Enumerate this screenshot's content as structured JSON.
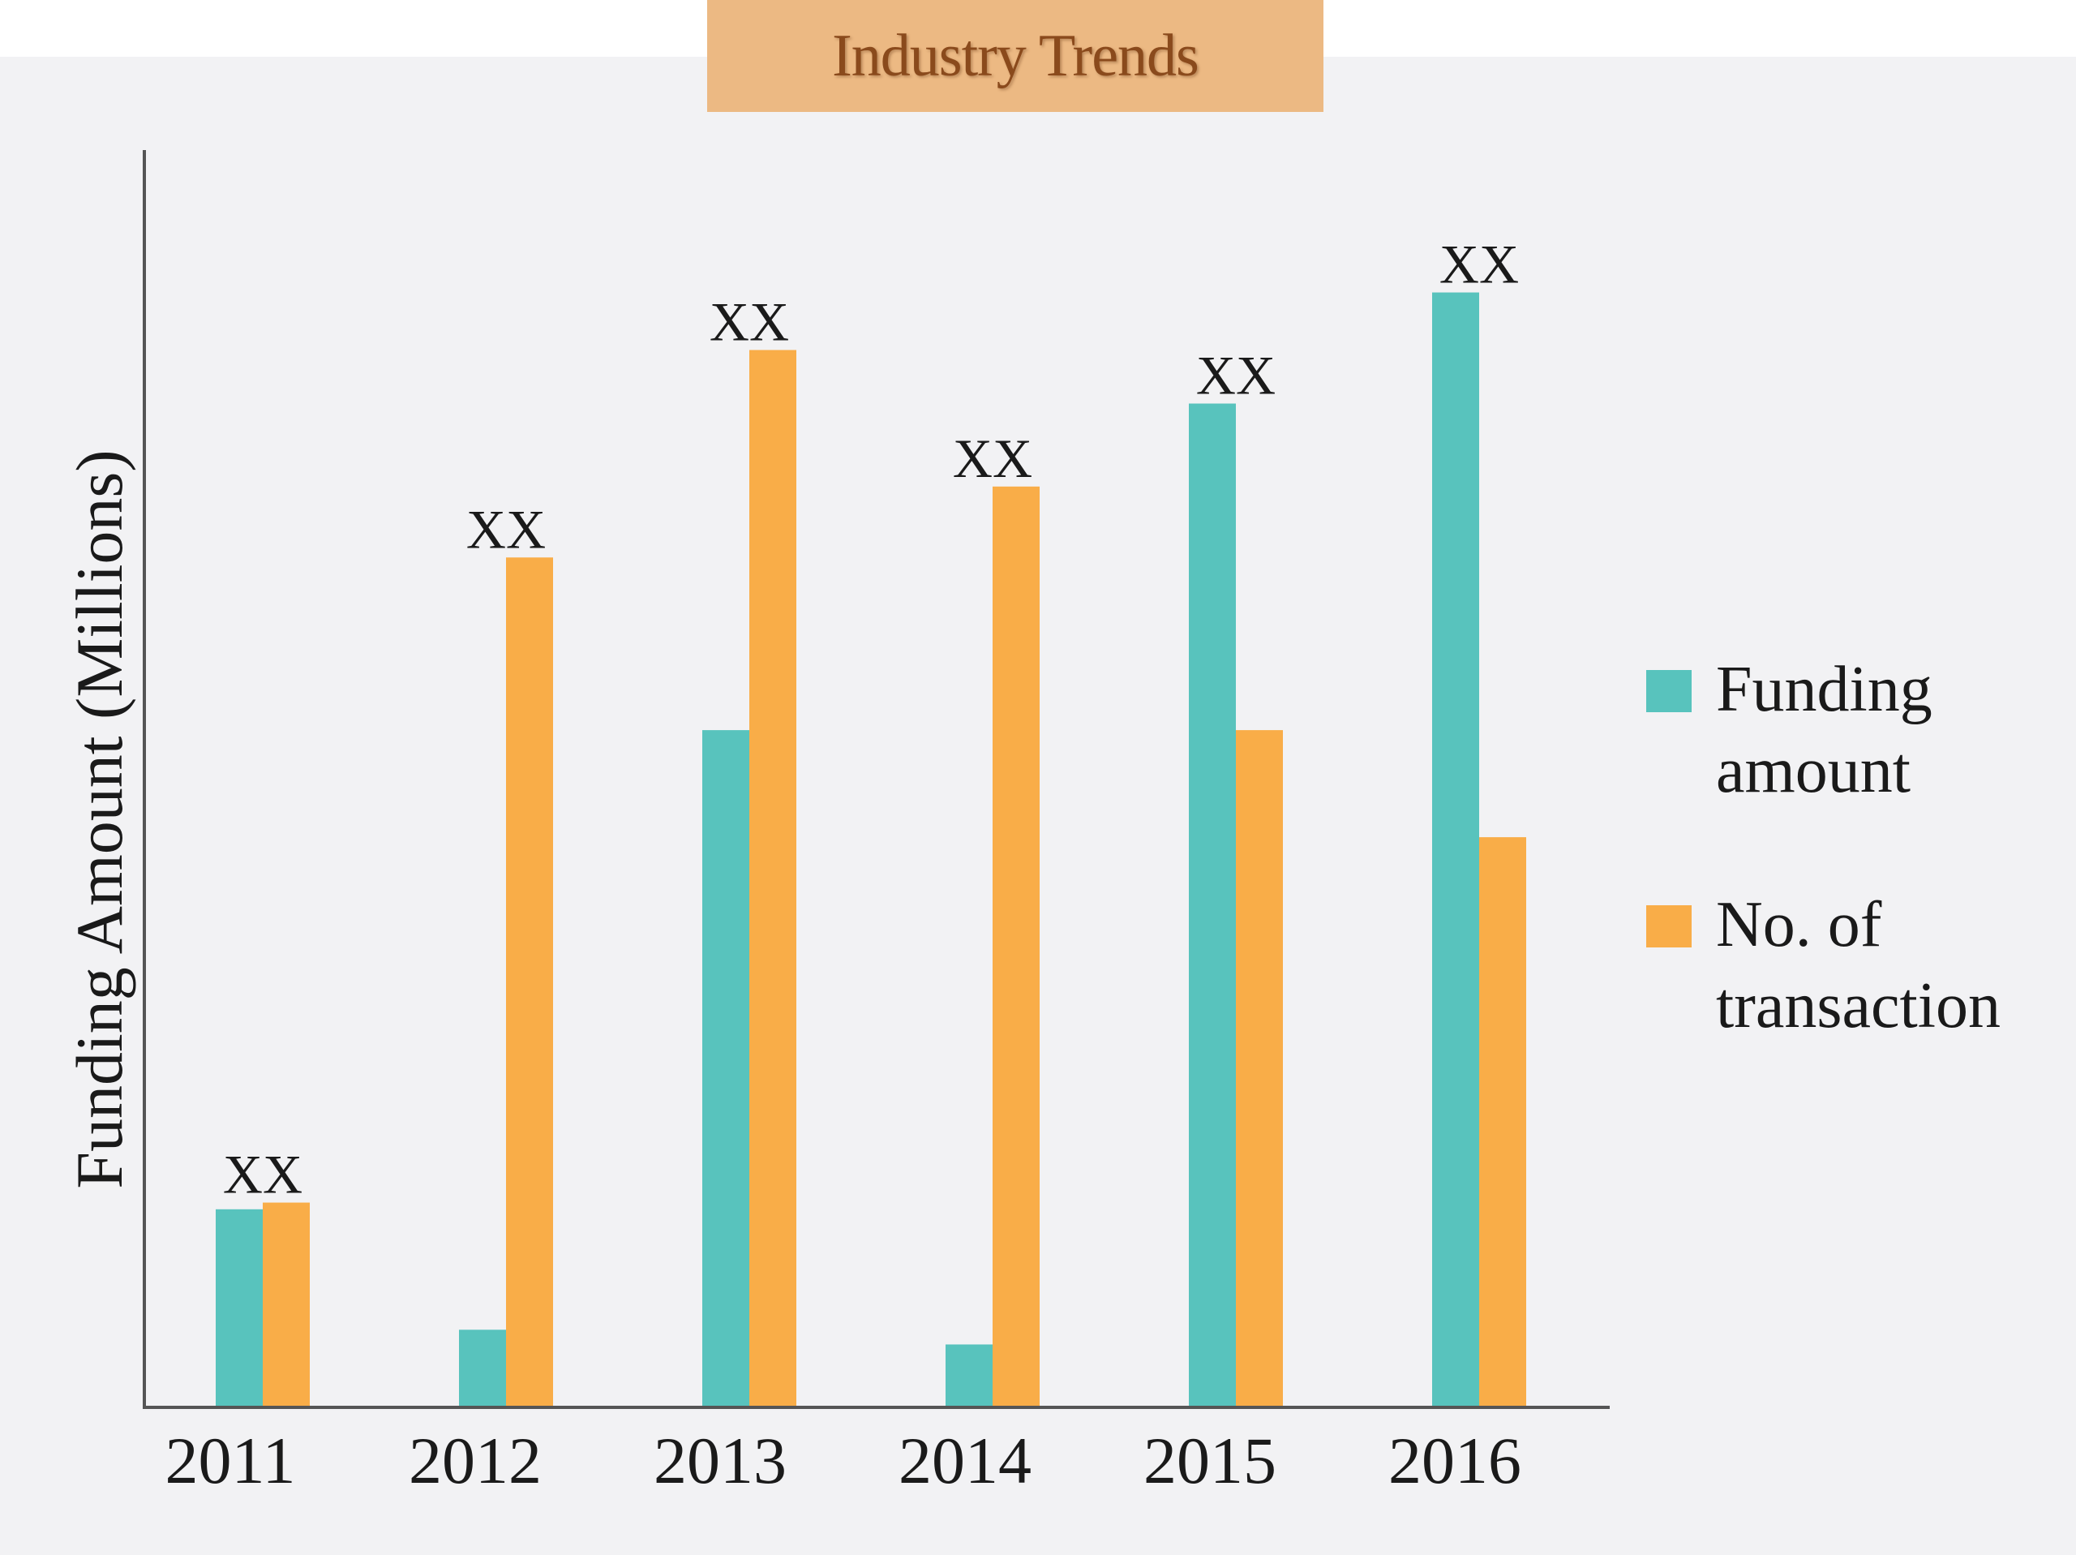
{
  "title": "Industry Trends",
  "chart_data": {
    "type": "bar",
    "title": "Industry Trends",
    "xlabel": "",
    "ylabel": "Funding Amount (Millions)",
    "categories": [
      "2011",
      "2012",
      "2013",
      "2014",
      "2015",
      "2016"
    ],
    "series": [
      {
        "name": "Funding amount",
        "color": "#58c3bd",
        "values": [
          14.8,
          5.8,
          50.6,
          4.7,
          75.0,
          83.3
        ]
      },
      {
        "name": "No. of transaction",
        "color": "#f9ad48",
        "values": [
          15.3,
          63.5,
          79.0,
          68.8,
          50.6,
          42.6
        ]
      }
    ],
    "data_labels": [
      "XX",
      "XX",
      "XX",
      "XX",
      "XX",
      "XX"
    ],
    "ylim": [
      0,
      100
    ],
    "grid": false,
    "legend_position": "right"
  }
}
